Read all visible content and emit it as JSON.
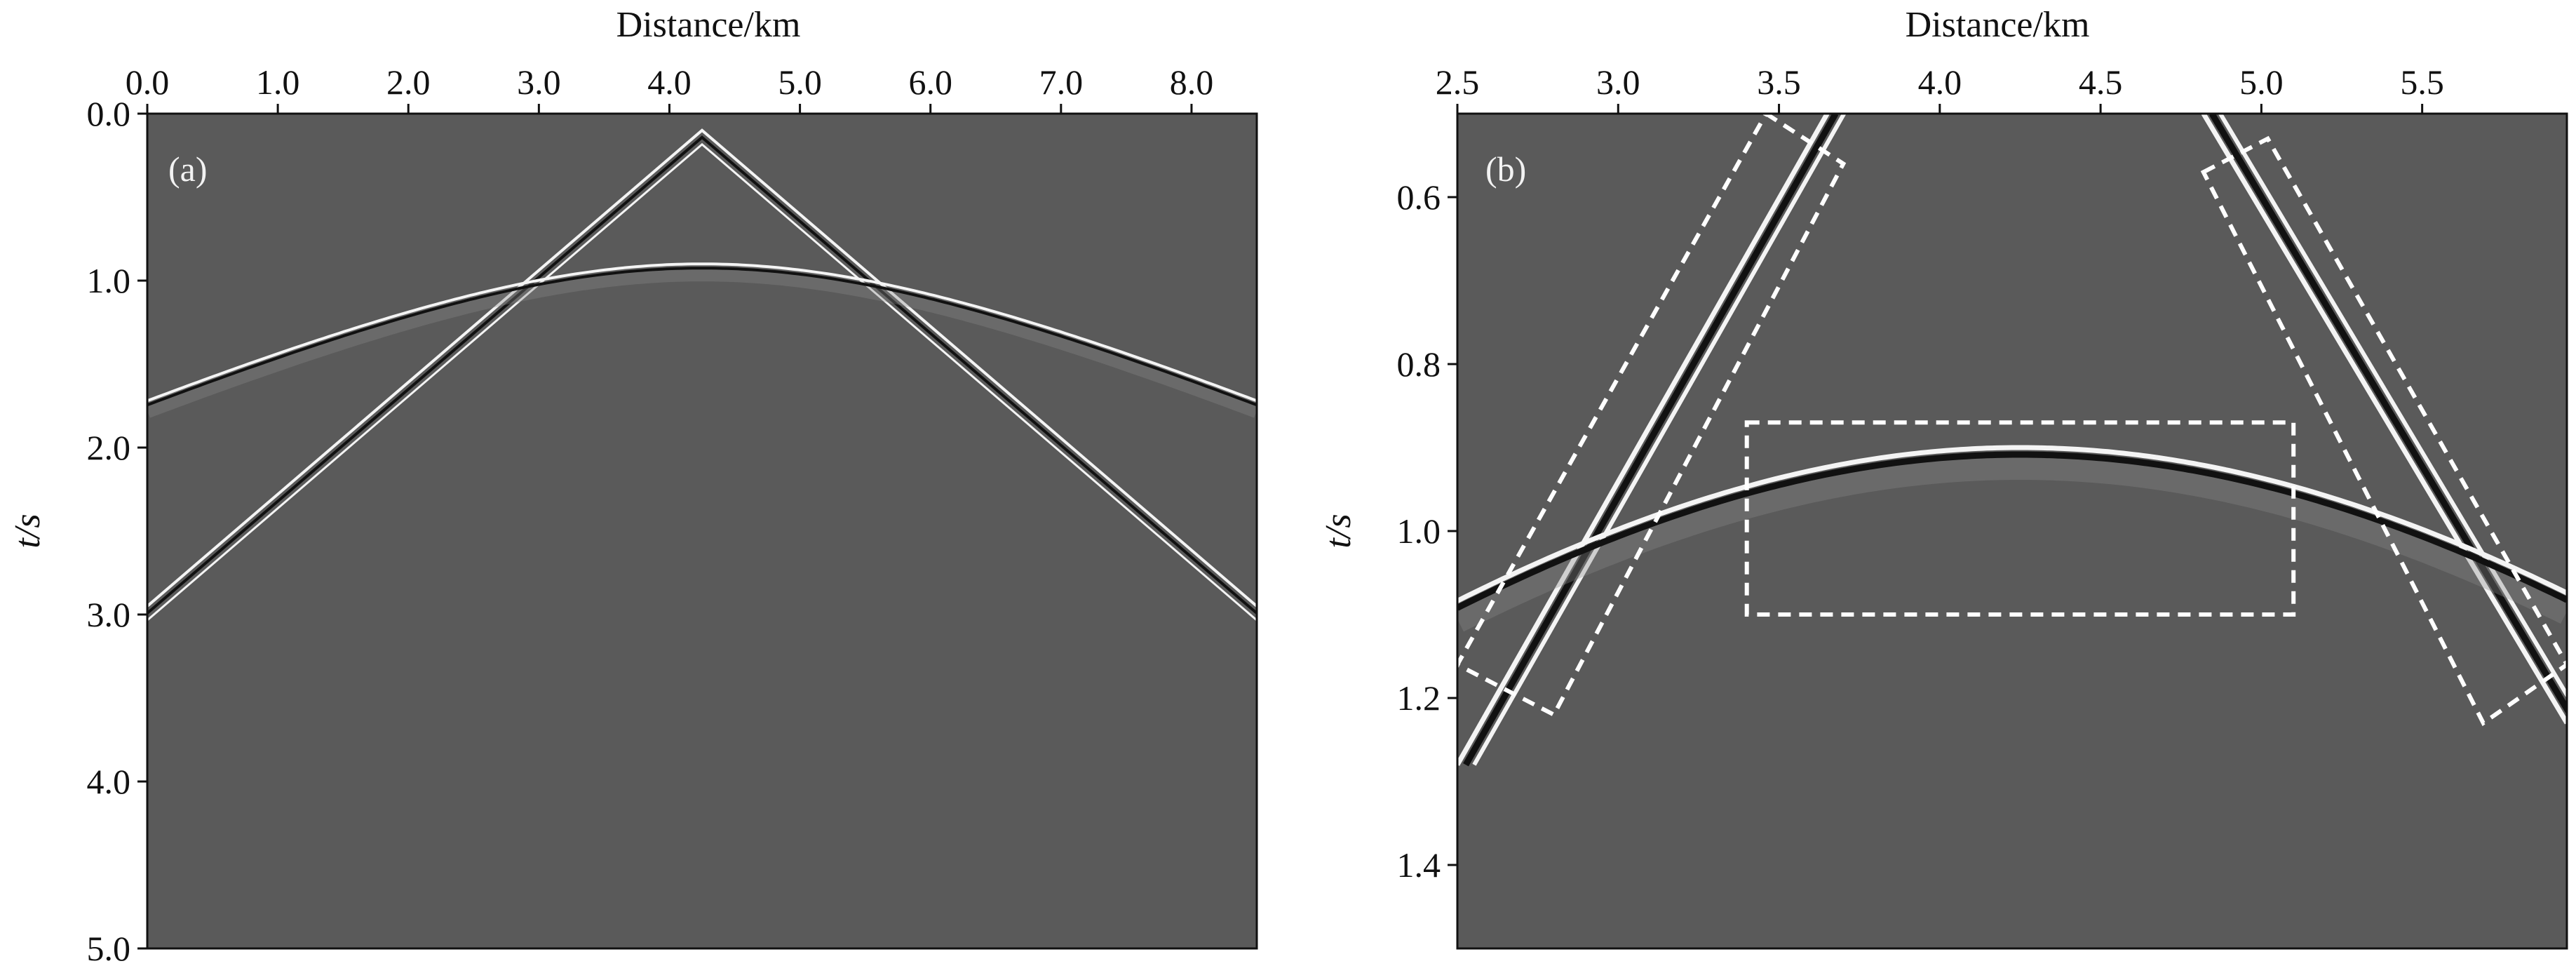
{
  "figure": {
    "background": "#ffffff",
    "panel_background": "#5a5a5a",
    "event_color": "#f4f4f4",
    "dark_event_color": "#111111",
    "box_color": "#ffffff"
  },
  "chart_data": [
    {
      "type": "heatmap",
      "panel_label": "(a)",
      "title": "Distance/km",
      "xlabel": "Distance/km",
      "ylabel": "t/s",
      "xlim": [
        0.0,
        8.5
      ],
      "ylim": [
        0.0,
        5.0
      ],
      "x_ticks": [
        0.0,
        1.0,
        2.0,
        3.0,
        4.0,
        5.0,
        6.0,
        7.0,
        8.0
      ],
      "x_tick_labels": [
        "0.0",
        "1.0",
        "2.0",
        "3.0",
        "4.0",
        "5.0",
        "6.0",
        "7.0",
        "8.0"
      ],
      "y_ticks": [
        0.0,
        1.0,
        2.0,
        3.0,
        4.0,
        5.0
      ],
      "y_tick_labels": [
        "0.0",
        "1.0",
        "2.0",
        "3.0",
        "4.0",
        "5.0"
      ],
      "events": [
        {
          "name": "direct-wave",
          "shape": "v",
          "apex_x": 4.25,
          "apex_t": 0.1,
          "end_t_left": 2.95,
          "end_t_right": 2.95
        },
        {
          "name": "reflection",
          "shape": "hyperbola",
          "apex_x": 4.25,
          "apex_t": 0.9,
          "velocity": 2.9
        }
      ]
    },
    {
      "type": "heatmap",
      "panel_label": "(b)",
      "title": "Distance/km",
      "xlabel": "Distance/km",
      "ylabel": "t/s",
      "xlim": [
        2.5,
        5.95
      ],
      "ylim": [
        0.5,
        1.5
      ],
      "x_ticks": [
        2.5,
        3.0,
        3.5,
        4.0,
        4.5,
        5.0,
        5.5
      ],
      "x_tick_labels": [
        "2.5",
        "3.0",
        "3.5",
        "4.0",
        "4.5",
        "5.0",
        "5.5"
      ],
      "y_ticks": [
        0.6,
        0.8,
        1.0,
        1.2,
        1.4
      ],
      "y_tick_labels": [
        "0.6",
        "0.8",
        "1.0",
        "1.2",
        "1.4"
      ],
      "events": [
        {
          "name": "direct-wave-left",
          "x0": 3.65,
          "t0": 0.5,
          "x1": 2.5,
          "t1": 1.28
        },
        {
          "name": "direct-wave-right",
          "x0": 4.82,
          "t0": 0.5,
          "x1": 5.95,
          "t1": 1.23
        },
        {
          "name": "reflection",
          "shape": "hyperbola",
          "apex_x": 4.25,
          "apex_t": 0.9,
          "velocity": 2.9
        }
      ],
      "boxes": [
        {
          "name": "box-center",
          "corners": [
            [
              3.4,
              0.87
            ],
            [
              5.1,
              0.87
            ],
            [
              5.1,
              1.1
            ],
            [
              3.4,
              1.1
            ]
          ]
        },
        {
          "name": "box-left",
          "corners": [
            [
              3.46,
              0.5
            ],
            [
              3.7,
              0.56
            ],
            [
              2.8,
              1.22
            ],
            [
              2.5,
              1.16
            ]
          ]
        },
        {
          "name": "box-right",
          "corners": [
            [
              4.82,
              0.57
            ],
            [
              5.02,
              0.53
            ],
            [
              5.95,
              1.16
            ],
            [
              5.69,
              1.23
            ]
          ]
        }
      ]
    }
  ]
}
